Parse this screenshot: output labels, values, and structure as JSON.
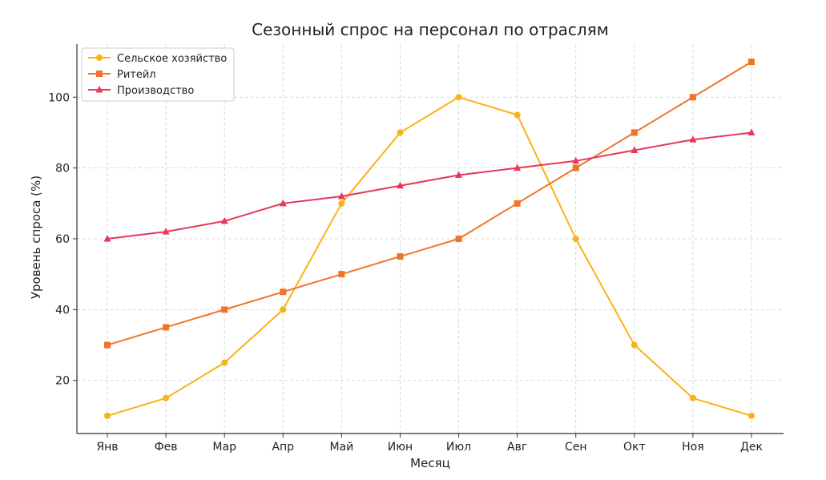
{
  "chart_data": {
    "type": "line",
    "title": "Сезонный спрос на персонал по отраслям",
    "xlabel": "Месяц",
    "ylabel": "Уровень спроса (%)",
    "categories": [
      "Янв",
      "Фев",
      "Мар",
      "Апр",
      "Май",
      "Июн",
      "Июл",
      "Авг",
      "Сен",
      "Окт",
      "Ноя",
      "Дек"
    ],
    "yticks": [
      20,
      40,
      60,
      80,
      100
    ],
    "ylim": [
      5,
      115
    ],
    "grid": true,
    "legend_position": "top-left",
    "series": [
      {
        "name": "Сельское хозяйство",
        "marker": "circle",
        "color": "#FBB117",
        "values": [
          10,
          15,
          25,
          40,
          70,
          90,
          100,
          95,
          60,
          30,
          15,
          10
        ]
      },
      {
        "name": "Ритейл",
        "marker": "square",
        "color": "#F07427",
        "values": [
          30,
          35,
          40,
          45,
          50,
          55,
          60,
          70,
          80,
          90,
          100,
          110
        ]
      },
      {
        "name": "Производство",
        "marker": "triangle",
        "color": "#E8375A",
        "values": [
          60,
          62,
          65,
          70,
          72,
          75,
          78,
          80,
          82,
          85,
          88,
          90
        ]
      }
    ]
  }
}
